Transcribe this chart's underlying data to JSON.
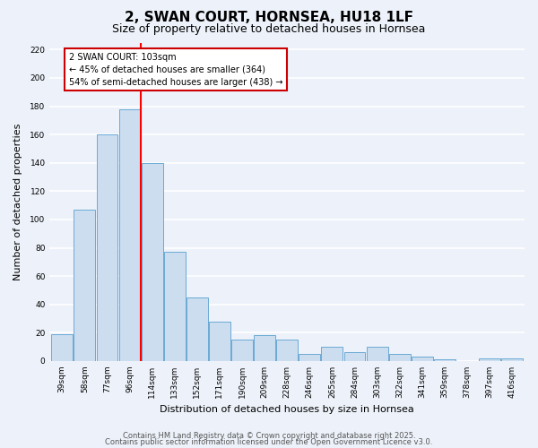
{
  "title": "2, SWAN COURT, HORNSEA, HU18 1LF",
  "subtitle": "Size of property relative to detached houses in Hornsea",
  "xlabel": "Distribution of detached houses by size in Hornsea",
  "ylabel": "Number of detached properties",
  "categories": [
    "39sqm",
    "58sqm",
    "77sqm",
    "96sqm",
    "114sqm",
    "133sqm",
    "152sqm",
    "171sqm",
    "190sqm",
    "209sqm",
    "228sqm",
    "246sqm",
    "265sqm",
    "284sqm",
    "303sqm",
    "322sqm",
    "341sqm",
    "359sqm",
    "378sqm",
    "397sqm",
    "416sqm"
  ],
  "values": [
    19,
    107,
    160,
    178,
    140,
    77,
    45,
    28,
    15,
    18,
    15,
    5,
    10,
    6,
    10,
    5,
    3,
    1,
    0,
    2,
    2
  ],
  "bar_color": "#ccddf0",
  "bar_edge_color": "#6aaad4",
  "red_line_x": 3.5,
  "red_line_label": "2 SWAN COURT: 103sqm",
  "annotation_line1": "← 45% of detached houses are smaller (364)",
  "annotation_line2": "54% of semi-detached houses are larger (438) →",
  "ylim": [
    0,
    225
  ],
  "yticks": [
    0,
    20,
    40,
    60,
    80,
    100,
    120,
    140,
    160,
    180,
    200,
    220
  ],
  "background_color": "#edf2fa",
  "plot_background_color": "#edf2fa",
  "grid_color": "#ffffff",
  "footer_line1": "Contains HM Land Registry data © Crown copyright and database right 2025.",
  "footer_line2": "Contains public sector information licensed under the Open Government Licence v3.0.",
  "title_fontsize": 11,
  "subtitle_fontsize": 9,
  "axis_label_fontsize": 8,
  "tick_fontsize": 6.5,
  "footer_fontsize": 6
}
